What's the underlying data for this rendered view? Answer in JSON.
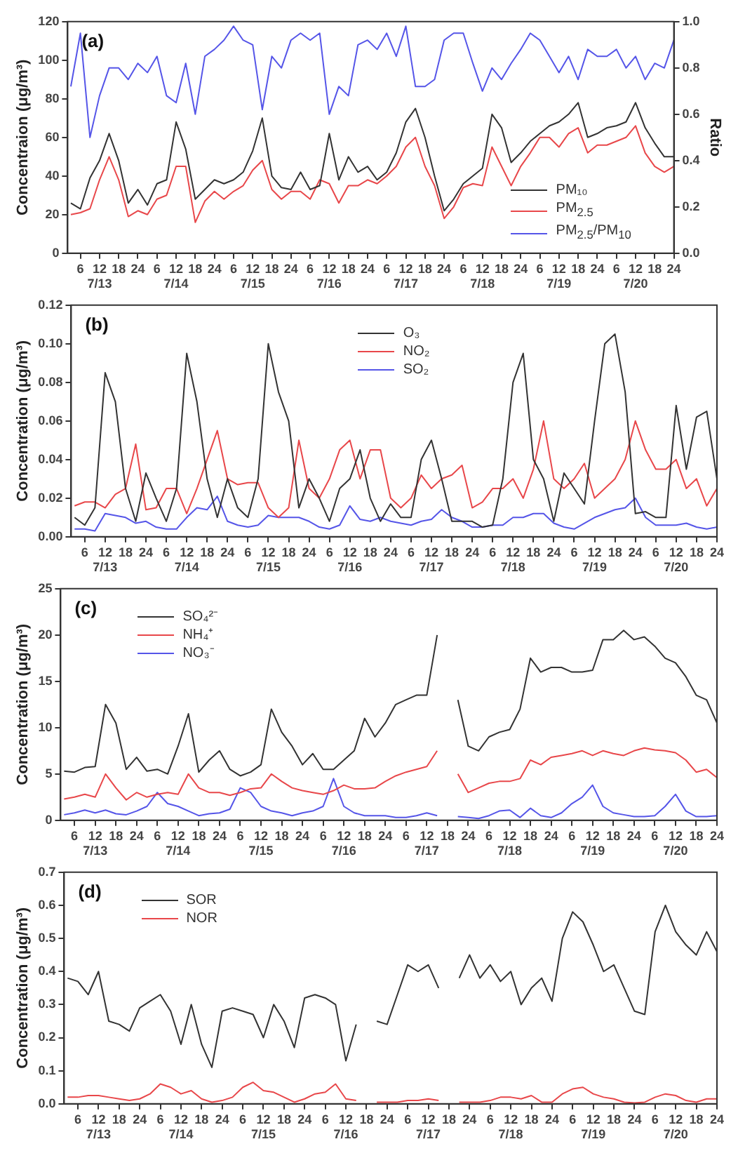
{
  "chart_data": [
    {
      "type": "line",
      "annotations": [
        "(a)"
      ],
      "ylabel": "Concentraion (μg/m³)",
      "y2label": "Ratio",
      "legend": "bottom right",
      "x": [
        "--07-13T03:00",
        "--07-13T06:00",
        "--07-13T09:00",
        "--07-13T12:00",
        "--07-13T15:00",
        "--07-13T18:00",
        "--07-13T21:00",
        "--07-14T00:00",
        "--07-14T03:00",
        "--07-14T06:00",
        "--07-14T09:00",
        "--07-14T12:00",
        "--07-14T15:00",
        "--07-14T18:00",
        "--07-14T21:00",
        "--07-15T00:00",
        "--07-15T03:00",
        "--07-15T06:00",
        "--07-15T09:00",
        "--07-15T12:00",
        "--07-15T15:00",
        "--07-15T18:00",
        "--07-15T21:00",
        "--07-16T00:00",
        "--07-16T03:00",
        "--07-16T06:00",
        "--07-16T09:00",
        "--07-16T12:00",
        "--07-16T15:00",
        "--07-16T18:00",
        "--07-16T21:00",
        "--07-17T00:00",
        "--07-17T03:00",
        "--07-17T06:00",
        "--07-17T09:00",
        "--07-17T12:00",
        "--07-17T15:00",
        "--07-17T18:00",
        "--07-17T21:00",
        "--07-18T00:00",
        "--07-18T03:00",
        "--07-18T06:00",
        "--07-18T09:00",
        "--07-18T12:00",
        "--07-18T15:00",
        "--07-18T18:00",
        "--07-18T21:00",
        "--07-19T00:00",
        "--07-19T03:00",
        "--07-19T06:00",
        "--07-19T09:00",
        "--07-19T12:00",
        "--07-19T15:00",
        "--07-19T18:00",
        "--07-19T21:00",
        "--07-20T00:00",
        "--07-20T03:00",
        "--07-20T06:00",
        "--07-20T09:00",
        "--07-20T12:00",
        "--07-20T15:00",
        "--07-20T18:00",
        "--07-20T21:00",
        "--07-21T00:00"
      ],
      "xlim": [
        "--07-13T02:00",
        "--07-21T00:00"
      ],
      "xticks": [
        {
          "value": "--07-13T06:00",
          "label": "6"
        },
        {
          "value": "--07-13T12:00",
          "label": "12\n7/13"
        },
        {
          "value": "--07-13T18:00",
          "label": "18"
        },
        {
          "value": "--07-14T00:00",
          "label": "24"
        },
        {
          "value": "--07-14T06:00",
          "label": "6"
        },
        {
          "value": "--07-14T12:00",
          "label": "12\n7/14"
        },
        {
          "value": "--07-14T18:00",
          "label": "18"
        },
        {
          "value": "--07-15T00:00",
          "label": "24"
        },
        {
          "value": "--07-15T06:00",
          "label": "6"
        },
        {
          "value": "--07-15T12:00",
          "label": "12\n7/15"
        },
        {
          "value": "--07-15T18:00",
          "label": "18"
        },
        {
          "value": "--07-16T00:00",
          "label": "24"
        },
        {
          "value": "--07-16T06:00",
          "label": "6"
        },
        {
          "value": "--07-16T12:00",
          "label": "12\n7/16"
        },
        {
          "value": "--07-16T18:00",
          "label": "18"
        },
        {
          "value": "--07-17T00:00",
          "label": "24"
        },
        {
          "value": "--07-17T06:00",
          "label": "6"
        },
        {
          "value": "--07-17T12:00",
          "label": "12\n7/17"
        },
        {
          "value": "--07-17T18:00",
          "label": "18"
        },
        {
          "value": "--07-18T00:00",
          "label": "24"
        },
        {
          "value": "--07-18T06:00",
          "label": "6"
        },
        {
          "value": "--07-18T12:00",
          "label": "12\n7/18"
        },
        {
          "value": "--07-18T18:00",
          "label": "18"
        },
        {
          "value": "--07-19T00:00",
          "label": "24"
        },
        {
          "value": "--07-19T06:00",
          "label": "6"
        },
        {
          "value": "--07-19T12:00",
          "label": "12\n7/19"
        },
        {
          "value": "--07-19T18:00",
          "label": "18"
        },
        {
          "value": "--07-20T00:00",
          "label": "24"
        },
        {
          "value": "--07-20T06:00",
          "label": "6"
        },
        {
          "value": "--07-20T12:00",
          "label": "12\n7/20"
        },
        {
          "value": "--07-20T18:00",
          "label": "18"
        },
        {
          "value": "--07-21T00:00",
          "label": "24"
        }
      ],
      "ylim": [
        0,
        120
      ],
      "yticks": [
        0,
        20,
        40,
        60,
        80,
        100,
        120
      ],
      "y2lim": [
        0,
        1
      ],
      "y2ticks": [
        {
          "value": 0,
          "label": "0.0"
        },
        0.2,
        0.4,
        0.6,
        0.8,
        {
          "value": 1,
          "label": "1.0"
        }
      ],
      "series": [
        {
          "name": "PM₁₀",
          "color": "#333333",
          "values": [
            26,
            23,
            39,
            48,
            62,
            48,
            26,
            33,
            25,
            36,
            38,
            68,
            54,
            28,
            33,
            38,
            36,
            38,
            42,
            53,
            70,
            40,
            34,
            33,
            42,
            33,
            35,
            62,
            38,
            50,
            42,
            45,
            38,
            42,
            52,
            68,
            75,
            60,
            40,
            22,
            28,
            36,
            40,
            44,
            72,
            65,
            47,
            52,
            58,
            62,
            66,
            68,
            72,
            78,
            60,
            62,
            65,
            66,
            68,
            78,
            65,
            57,
            50,
            50
          ]
        },
        {
          "name": "PM$_{2.5}$",
          "color": "#e8474a",
          "values": [
            20,
            21,
            23,
            38,
            50,
            38,
            19,
            22,
            20,
            28,
            30,
            45,
            45,
            16,
            27,
            32,
            28,
            32,
            35,
            43,
            48,
            33,
            28,
            32,
            32,
            28,
            38,
            36,
            26,
            35,
            35,
            38,
            36,
            40,
            45,
            55,
            60,
            45,
            35,
            18,
            24,
            34,
            36,
            35,
            55,
            45,
            35,
            45,
            52,
            60,
            60,
            55,
            62,
            65,
            52,
            56,
            56,
            58,
            60,
            66,
            52,
            45,
            42,
            45
          ]
        },
        {
          "name": "PM$_{2.5}$/PM$_{10}$",
          "color": "#5555e8",
          "axis": "y2",
          "values": [
            0.72,
            0.95,
            0.5,
            0.68,
            0.8,
            0.8,
            0.75,
            0.82,
            0.78,
            0.85,
            0.68,
            0.65,
            0.82,
            0.6,
            0.85,
            0.88,
            0.92,
            0.98,
            0.92,
            0.9,
            0.62,
            0.85,
            0.8,
            0.92,
            0.95,
            0.92,
            0.95,
            0.6,
            0.72,
            0.68,
            0.9,
            0.92,
            0.88,
            0.95,
            0.85,
            0.98,
            0.72,
            0.72,
            0.75,
            0.92,
            0.95,
            0.95,
            0.82,
            0.7,
            0.8,
            0.75,
            0.82,
            0.88,
            0.95,
            0.92,
            0.85,
            0.78,
            0.85,
            0.75,
            0.88,
            0.85,
            0.85,
            0.88,
            0.8,
            0.85,
            0.75,
            0.82,
            0.8,
            0.92
          ]
        }
      ]
    },
    {
      "type": "line",
      "annotations": [
        "(b)"
      ],
      "ylabel": "Concentration (μg/m³)",
      "legend": "top",
      "x": [
        "--07-13T03:00",
        "--07-13T06:00",
        "--07-13T09:00",
        "--07-13T12:00",
        "--07-13T15:00",
        "--07-13T18:00",
        "--07-13T21:00",
        "--07-14T00:00",
        "--07-14T03:00",
        "--07-14T06:00",
        "--07-14T09:00",
        "--07-14T12:00",
        "--07-14T15:00",
        "--07-14T18:00",
        "--07-14T21:00",
        "--07-15T00:00",
        "--07-15T03:00",
        "--07-15T06:00",
        "--07-15T09:00",
        "--07-15T12:00",
        "--07-15T15:00",
        "--07-15T18:00",
        "--07-15T21:00",
        "--07-16T00:00",
        "--07-16T03:00",
        "--07-16T06:00",
        "--07-16T09:00",
        "--07-16T12:00",
        "--07-16T15:00",
        "--07-16T18:00",
        "--07-16T21:00",
        "--07-17T00:00",
        "--07-17T03:00",
        "--07-17T06:00",
        "--07-17T09:00",
        "--07-17T12:00",
        "--07-17T15:00",
        "--07-17T18:00",
        "--07-17T21:00",
        "--07-18T00:00",
        "--07-18T03:00",
        "--07-18T06:00",
        "--07-18T09:00",
        "--07-18T12:00",
        "--07-18T15:00",
        "--07-18T18:00",
        "--07-18T21:00",
        "--07-19T00:00",
        "--07-19T03:00",
        "--07-19T06:00",
        "--07-19T09:00",
        "--07-19T12:00",
        "--07-19T15:00",
        "--07-19T18:00",
        "--07-19T21:00",
        "--07-20T00:00",
        "--07-20T03:00",
        "--07-20T06:00",
        "--07-20T09:00",
        "--07-20T12:00",
        "--07-20T15:00",
        "--07-20T18:00",
        "--07-20T21:00",
        "--07-21T00:00"
      ],
      "xlim": [
        "--07-13T02:00",
        "--07-21T00:00"
      ],
      "xticks": [
        {
          "value": "--07-13T06:00",
          "label": "6"
        },
        {
          "value": "--07-13T12:00",
          "label": "12\n7/13"
        },
        {
          "value": "--07-13T18:00",
          "label": "18"
        },
        {
          "value": "--07-14T00:00",
          "label": "24"
        },
        {
          "value": "--07-14T06:00",
          "label": "6"
        },
        {
          "value": "--07-14T12:00",
          "label": "12\n7/14"
        },
        {
          "value": "--07-14T18:00",
          "label": "18"
        },
        {
          "value": "--07-15T00:00",
          "label": "24"
        },
        {
          "value": "--07-15T06:00",
          "label": "6"
        },
        {
          "value": "--07-15T12:00",
          "label": "12\n7/15"
        },
        {
          "value": "--07-15T18:00",
          "label": "18"
        },
        {
          "value": "--07-16T00:00",
          "label": "24"
        },
        {
          "value": "--07-16T06:00",
          "label": "6"
        },
        {
          "value": "--07-16T12:00",
          "label": "12\n7/16"
        },
        {
          "value": "--07-16T18:00",
          "label": "18"
        },
        {
          "value": "--07-17T00:00",
          "label": "24"
        },
        {
          "value": "--07-17T06:00",
          "label": "6"
        },
        {
          "value": "--07-17T12:00",
          "label": "12\n7/17"
        },
        {
          "value": "--07-17T18:00",
          "label": "18"
        },
        {
          "value": "--07-18T00:00",
          "label": "24"
        },
        {
          "value": "--07-18T06:00",
          "label": "6"
        },
        {
          "value": "--07-18T12:00",
          "label": "12\n7/18"
        },
        {
          "value": "--07-18T18:00",
          "label": "18"
        },
        {
          "value": "--07-19T00:00",
          "label": "24"
        },
        {
          "value": "--07-19T06:00",
          "label": "6"
        },
        {
          "value": "--07-19T12:00",
          "label": "12\n7/19"
        },
        {
          "value": "--07-19T18:00",
          "label": "18"
        },
        {
          "value": "--07-20T00:00",
          "label": "24"
        },
        {
          "value": "--07-20T06:00",
          "label": "6"
        },
        {
          "value": "--07-20T12:00",
          "label": "12\n7/20"
        },
        {
          "value": "--07-20T18:00",
          "label": "18"
        },
        {
          "value": "--07-21T00:00",
          "label": "24"
        }
      ],
      "ylim": [
        0,
        0.12
      ],
      "yticks": [
        {
          "value": 0,
          "label": "0.00"
        },
        {
          "value": 0.02,
          "label": "0.02"
        },
        {
          "value": 0.04,
          "label": "0.04"
        },
        {
          "value": 0.06,
          "label": "0.06"
        },
        {
          "value": 0.08,
          "label": "0.08"
        },
        {
          "value": 0.1,
          "label": "0.10"
        },
        {
          "value": 0.12,
          "label": "0.12"
        }
      ],
      "series": [
        {
          "name": "O₃",
          "color": "#333333",
          "values": [
            0.01,
            0.006,
            0.015,
            0.085,
            0.07,
            0.025,
            0.008,
            0.033,
            0.02,
            0.008,
            0.025,
            0.095,
            0.07,
            0.03,
            0.01,
            0.03,
            0.015,
            0.01,
            0.03,
            0.1,
            0.075,
            0.06,
            0.015,
            0.03,
            0.02,
            0.008,
            0.025,
            0.03,
            0.045,
            0.02,
            0.008,
            0.017,
            0.01,
            0.01,
            0.04,
            0.05,
            0.03,
            0.008,
            0.008,
            0.008,
            0.005,
            0.006,
            0.03,
            0.08,
            0.095,
            0.04,
            0.03,
            0.008,
            0.033,
            0.025,
            0.017,
            0.06,
            0.1,
            0.105,
            0.075,
            0.012,
            0.013,
            0.01,
            0.01,
            0.068,
            0.035,
            0.062,
            0.065,
            0.03
          ]
        },
        {
          "name": "NO₂",
          "color": "#e8474a",
          "values": [
            0.016,
            0.018,
            0.018,
            0.015,
            0.022,
            0.025,
            0.048,
            0.014,
            0.015,
            0.025,
            0.025,
            0.012,
            0.025,
            0.04,
            0.055,
            0.03,
            0.027,
            0.028,
            0.028,
            0.015,
            0.01,
            0.015,
            0.05,
            0.025,
            0.02,
            0.03,
            0.045,
            0.05,
            0.03,
            0.045,
            0.045,
            0.02,
            0.015,
            0.02,
            0.032,
            0.025,
            0.03,
            0.032,
            0.037,
            0.015,
            0.018,
            0.025,
            0.025,
            0.03,
            0.02,
            0.035,
            0.06,
            0.03,
            0.025,
            0.03,
            0.038,
            0.02,
            0.025,
            0.03,
            0.04,
            0.06,
            0.045,
            0.035,
            0.035,
            0.04,
            0.025,
            0.03,
            0.016,
            0.025
          ]
        },
        {
          "name": "SO₂",
          "color": "#5555e8",
          "values": [
            0.004,
            0.004,
            0.003,
            0.012,
            0.011,
            0.01,
            0.007,
            0.008,
            0.005,
            0.004,
            0.004,
            0.01,
            0.015,
            0.014,
            0.021,
            0.008,
            0.006,
            0.005,
            0.006,
            0.011,
            0.01,
            0.01,
            0.01,
            0.008,
            0.005,
            0.004,
            0.006,
            0.016,
            0.009,
            0.008,
            0.01,
            0.008,
            0.007,
            0.006,
            0.008,
            0.009,
            0.014,
            0.01,
            0.008,
            0.005,
            0.005,
            0.006,
            0.006,
            0.01,
            0.01,
            0.012,
            0.012,
            0.007,
            0.005,
            0.004,
            0.007,
            0.01,
            0.012,
            0.014,
            0.015,
            0.02,
            0.01,
            0.006,
            0.006,
            0.006,
            0.007,
            0.005,
            0.004,
            0.005
          ]
        }
      ]
    },
    {
      "type": "line",
      "annotations": [
        "(c)"
      ],
      "ylabel": "Concentration (μg/m³)",
      "legend": "top left",
      "x": [
        "--07-13T03:00",
        "--07-13T06:00",
        "--07-13T09:00",
        "--07-13T12:00",
        "--07-13T15:00",
        "--07-13T18:00",
        "--07-13T21:00",
        "--07-14T00:00",
        "--07-14T03:00",
        "--07-14T06:00",
        "--07-14T09:00",
        "--07-14T12:00",
        "--07-14T15:00",
        "--07-14T18:00",
        "--07-14T21:00",
        "--07-15T00:00",
        "--07-15T03:00",
        "--07-15T06:00",
        "--07-15T09:00",
        "--07-15T12:00",
        "--07-15T15:00",
        "--07-15T18:00",
        "--07-15T21:00",
        "--07-16T00:00",
        "--07-16T03:00",
        "--07-16T06:00",
        "--07-16T09:00",
        "--07-16T12:00",
        "--07-16T15:00",
        "--07-16T18:00",
        "--07-16T21:00",
        "--07-17T00:00",
        "--07-17T03:00",
        "--07-17T06:00",
        "--07-17T09:00",
        "--07-17T12:00",
        "--07-17T15:00",
        "--07-17T18:00",
        "--07-17T21:00",
        "--07-18T00:00",
        "--07-18T03:00",
        "--07-18T06:00",
        "--07-18T09:00",
        "--07-18T12:00",
        "--07-18T15:00",
        "--07-18T18:00",
        "--07-18T21:00",
        "--07-19T00:00",
        "--07-19T03:00",
        "--07-19T06:00",
        "--07-19T09:00",
        "--07-19T12:00",
        "--07-19T15:00",
        "--07-19T18:00",
        "--07-19T21:00",
        "--07-20T00:00",
        "--07-20T03:00",
        "--07-20T06:00",
        "--07-20T09:00",
        "--07-20T12:00",
        "--07-20T15:00",
        "--07-20T18:00",
        "--07-20T21:00",
        "--07-21T00:00"
      ],
      "xlim": [
        "--07-13T02:00",
        "--07-21T00:00"
      ],
      "xticks": [
        {
          "value": "--07-13T06:00",
          "label": "6"
        },
        {
          "value": "--07-13T12:00",
          "label": "12\n7/13"
        },
        {
          "value": "--07-13T18:00",
          "label": "18"
        },
        {
          "value": "--07-14T00:00",
          "label": "24"
        },
        {
          "value": "--07-14T06:00",
          "label": "6"
        },
        {
          "value": "--07-14T12:00",
          "label": "12\n7/14"
        },
        {
          "value": "--07-14T18:00",
          "label": "18"
        },
        {
          "value": "--07-15T00:00",
          "label": "24"
        },
        {
          "value": "--07-15T06:00",
          "label": "6"
        },
        {
          "value": "--07-15T12:00",
          "label": "12\n7/15"
        },
        {
          "value": "--07-15T18:00",
          "label": "18"
        },
        {
          "value": "--07-16T00:00",
          "label": "24"
        },
        {
          "value": "--07-16T06:00",
          "label": "6"
        },
        {
          "value": "--07-16T12:00",
          "label": "12\n7/16"
        },
        {
          "value": "--07-16T18:00",
          "label": "18"
        },
        {
          "value": "--07-17T00:00",
          "label": "24"
        },
        {
          "value": "--07-17T06:00",
          "label": "6"
        },
        {
          "value": "--07-17T12:00",
          "label": "12\n7/17"
        },
        {
          "value": "--07-17T18:00",
          "label": "18"
        },
        {
          "value": "--07-18T00:00",
          "label": "24"
        },
        {
          "value": "--07-18T06:00",
          "label": "6"
        },
        {
          "value": "--07-18T12:00",
          "label": "12\n7/18"
        },
        {
          "value": "--07-18T18:00",
          "label": "18"
        },
        {
          "value": "--07-19T00:00",
          "label": "24"
        },
        {
          "value": "--07-19T06:00",
          "label": "6"
        },
        {
          "value": "--07-19T12:00",
          "label": "12\n7/19"
        },
        {
          "value": "--07-19T18:00",
          "label": "18"
        },
        {
          "value": "--07-20T00:00",
          "label": "24"
        },
        {
          "value": "--07-20T06:00",
          "label": "6"
        },
        {
          "value": "--07-20T12:00",
          "label": "12\n7/20"
        },
        {
          "value": "--07-20T18:00",
          "label": "18"
        },
        {
          "value": "--07-21T00:00",
          "label": "24"
        }
      ],
      "ylim": [
        0,
        25
      ],
      "yticks": [
        0,
        5,
        10,
        15,
        20,
        25
      ],
      "series": [
        {
          "name": "SO₄²⁻",
          "color": "#333333",
          "values": [
            5.3,
            5.2,
            5.7,
            5.8,
            12.5,
            10.5,
            5.5,
            6.8,
            5.3,
            5.5,
            5,
            8,
            11.5,
            5.2,
            6.5,
            7.5,
            5.5,
            4.8,
            5.2,
            6,
            12,
            9.5,
            8,
            6,
            7.2,
            5.5,
            5.5,
            6.5,
            7.5,
            11,
            9,
            10.5,
            12.5,
            13,
            13.5,
            13.5,
            20,
            null,
            13,
            8,
            7.5,
            9,
            9.5,
            9.8,
            12,
            17.5,
            16,
            16.5,
            16.5,
            16,
            16,
            16.2,
            19.5,
            19.5,
            20.5,
            19.5,
            19.8,
            18.8,
            17.5,
            17,
            15.5,
            13.5,
            13,
            10.5
          ]
        },
        {
          "name": "NH₄⁺",
          "color": "#e8474a",
          "values": [
            2.3,
            2.5,
            2.8,
            2.5,
            5,
            3.5,
            2.2,
            3,
            2.5,
            2.8,
            3,
            2.8,
            5,
            3.5,
            3,
            3,
            2.7,
            3,
            3.4,
            3.5,
            5,
            4.2,
            3.5,
            3.2,
            3,
            2.8,
            3.2,
            3.8,
            3.4,
            3.4,
            3.5,
            4.2,
            4.8,
            5.2,
            5.5,
            5.8,
            7.5,
            null,
            5,
            3,
            3.5,
            4,
            4.2,
            4.2,
            4.5,
            6.5,
            6,
            6.8,
            7,
            7.2,
            7.5,
            7,
            7.5,
            7.2,
            7,
            7.5,
            7.8,
            7.6,
            7.5,
            7.3,
            6.5,
            5.2,
            5.5,
            4.6
          ]
        },
        {
          "name": "NO₃⁻",
          "color": "#5555e8",
          "values": [
            0.6,
            0.8,
            1.1,
            0.8,
            1.1,
            0.7,
            0.6,
            1,
            1.5,
            3,
            1.8,
            1.5,
            1,
            0.5,
            0.7,
            0.8,
            1.2,
            3.5,
            3,
            1.5,
            1,
            0.8,
            0.5,
            0.8,
            1,
            1.5,
            4.5,
            1.5,
            0.8,
            0.5,
            0.5,
            0.5,
            0.3,
            0.3,
            0.5,
            0.8,
            0.5,
            null,
            0.4,
            0.3,
            0.2,
            0.5,
            1,
            1.1,
            0.3,
            1.3,
            0.5,
            0.3,
            0.8,
            1.8,
            2.5,
            3.8,
            1.5,
            0.8,
            0.6,
            0.4,
            0.4,
            0.5,
            1.5,
            2.8,
            1,
            0.4,
            0.4,
            0.5
          ]
        }
      ]
    },
    {
      "type": "line",
      "annotations": [
        "(d)"
      ],
      "ylabel": "Concentration (μg/m³)",
      "legend": "top left",
      "x": [
        "--07-13T03:00",
        "--07-13T06:00",
        "--07-13T09:00",
        "--07-13T12:00",
        "--07-13T15:00",
        "--07-13T18:00",
        "--07-13T21:00",
        "--07-14T00:00",
        "--07-14T03:00",
        "--07-14T06:00",
        "--07-14T09:00",
        "--07-14T12:00",
        "--07-14T15:00",
        "--07-14T18:00",
        "--07-14T21:00",
        "--07-15T00:00",
        "--07-15T03:00",
        "--07-15T06:00",
        "--07-15T09:00",
        "--07-15T12:00",
        "--07-15T15:00",
        "--07-15T18:00",
        "--07-15T21:00",
        "--07-16T00:00",
        "--07-16T03:00",
        "--07-16T06:00",
        "--07-16T09:00",
        "--07-16T12:00",
        "--07-16T15:00",
        "--07-16T18:00",
        "--07-16T21:00",
        "--07-17T00:00",
        "--07-17T03:00",
        "--07-17T06:00",
        "--07-17T09:00",
        "--07-17T12:00",
        "--07-17T15:00",
        "--07-17T18:00",
        "--07-17T21:00",
        "--07-18T00:00",
        "--07-18T03:00",
        "--07-18T06:00",
        "--07-18T09:00",
        "--07-18T12:00",
        "--07-18T15:00",
        "--07-18T18:00",
        "--07-18T21:00",
        "--07-19T00:00",
        "--07-19T03:00",
        "--07-19T06:00",
        "--07-19T09:00",
        "--07-19T12:00",
        "--07-19T15:00",
        "--07-19T18:00",
        "--07-19T21:00",
        "--07-20T00:00",
        "--07-20T03:00",
        "--07-20T06:00",
        "--07-20T09:00",
        "--07-20T12:00",
        "--07-20T15:00",
        "--07-20T18:00",
        "--07-20T21:00",
        "--07-21T00:00"
      ],
      "xlim": [
        "--07-13T02:00",
        "--07-21T00:00"
      ],
      "xticks": [
        {
          "value": "--07-13T06:00",
          "label": "6"
        },
        {
          "value": "--07-13T12:00",
          "label": "12\n7/13"
        },
        {
          "value": "--07-13T18:00",
          "label": "18"
        },
        {
          "value": "--07-14T00:00",
          "label": "24"
        },
        {
          "value": "--07-14T06:00",
          "label": "6"
        },
        {
          "value": "--07-14T12:00",
          "label": "12\n7/14"
        },
        {
          "value": "--07-14T18:00",
          "label": "18"
        },
        {
          "value": "--07-15T00:00",
          "label": "24"
        },
        {
          "value": "--07-15T06:00",
          "label": "6"
        },
        {
          "value": "--07-15T12:00",
          "label": "12\n7/15"
        },
        {
          "value": "--07-15T18:00",
          "label": "18"
        },
        {
          "value": "--07-16T00:00",
          "label": "24"
        },
        {
          "value": "--07-16T06:00",
          "label": "6"
        },
        {
          "value": "--07-16T12:00",
          "label": "12\n7/16"
        },
        {
          "value": "--07-16T18:00",
          "label": "18"
        },
        {
          "value": "--07-17T00:00",
          "label": "24"
        },
        {
          "value": "--07-17T06:00",
          "label": "6"
        },
        {
          "value": "--07-17T12:00",
          "label": "12\n7/17"
        },
        {
          "value": "--07-17T18:00",
          "label": "18"
        },
        {
          "value": "--07-18T00:00",
          "label": "24"
        },
        {
          "value": "--07-18T06:00",
          "label": "6"
        },
        {
          "value": "--07-18T12:00",
          "label": "12\n7/18"
        },
        {
          "value": "--07-18T18:00",
          "label": "18"
        },
        {
          "value": "--07-19T00:00",
          "label": "24"
        },
        {
          "value": "--07-19T06:00",
          "label": "6"
        },
        {
          "value": "--07-19T12:00",
          "label": "12\n7/19"
        },
        {
          "value": "--07-19T18:00",
          "label": "18"
        },
        {
          "value": "--07-20T00:00",
          "label": "24"
        },
        {
          "value": "--07-20T06:00",
          "label": "6"
        },
        {
          "value": "--07-20T12:00",
          "label": "12\n7/20"
        },
        {
          "value": "--07-20T18:00",
          "label": "18"
        },
        {
          "value": "--07-21T00:00",
          "label": "24"
        }
      ],
      "ylim": [
        0,
        0.7
      ],
      "yticks": [
        {
          "value": 0,
          "label": "0.0"
        },
        0.1,
        0.2,
        0.3,
        0.4,
        0.5,
        0.6,
        0.7
      ],
      "series": [
        {
          "name": "SOR",
          "color": "#333333",
          "values": [
            0.38,
            0.37,
            0.33,
            0.4,
            0.25,
            0.24,
            0.22,
            0.29,
            0.31,
            0.33,
            0.28,
            0.18,
            0.3,
            0.18,
            0.11,
            0.28,
            0.29,
            0.28,
            0.27,
            0.2,
            0.3,
            0.25,
            0.17,
            0.32,
            0.33,
            0.32,
            0.3,
            0.13,
            0.24,
            null,
            0.25,
            0.24,
            0.33,
            0.42,
            0.4,
            0.42,
            0.35,
            null,
            0.38,
            0.45,
            0.38,
            0.42,
            0.37,
            0.4,
            0.3,
            0.35,
            0.38,
            0.31,
            0.5,
            0.58,
            0.55,
            0.48,
            0.4,
            0.42,
            0.35,
            0.28,
            0.27,
            0.52,
            0.6,
            0.52,
            0.48,
            0.45,
            0.52,
            0.46
          ]
        },
        {
          "name": "NOR",
          "color": "#e8474a",
          "values": [
            0.02,
            0.02,
            0.025,
            0.025,
            0.02,
            0.015,
            0.01,
            0.015,
            0.03,
            0.06,
            0.05,
            0.03,
            0.04,
            0.015,
            0.005,
            0.01,
            0.02,
            0.05,
            0.065,
            0.04,
            0.035,
            0.02,
            0.005,
            0.015,
            0.03,
            0.035,
            0.06,
            0.015,
            0.01,
            null,
            0.005,
            0.005,
            0.005,
            0.01,
            0.01,
            0.015,
            0.01,
            null,
            0.005,
            0.005,
            0.005,
            0.01,
            0.02,
            0.02,
            0.015,
            0.025,
            0.005,
            0.005,
            0.03,
            0.045,
            0.05,
            0.03,
            0.02,
            0.015,
            0.005,
            0.003,
            0.005,
            0.02,
            0.03,
            0.025,
            0.01,
            0.005,
            0.015,
            0.015
          ]
        }
      ]
    }
  ]
}
